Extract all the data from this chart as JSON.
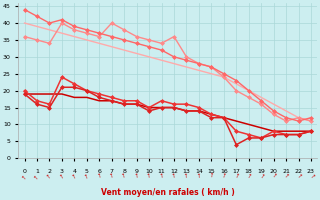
{
  "xlabel": "Vent moyen/en rafales ( km/h )",
  "xlim": [
    -0.5,
    23.5
  ],
  "ylim": [
    0,
    46
  ],
  "xticks": [
    0,
    1,
    2,
    3,
    4,
    5,
    6,
    7,
    8,
    9,
    10,
    11,
    12,
    13,
    14,
    15,
    16,
    17,
    18,
    19,
    20,
    21,
    22,
    23
  ],
  "yticks": [
    0,
    5,
    10,
    15,
    20,
    25,
    30,
    35,
    40,
    45
  ],
  "bg_color": "#cceef0",
  "grid_color": "#aad8d8",
  "lines": [
    {
      "x": [
        0,
        1,
        2,
        3,
        4,
        5,
        6,
        7,
        8,
        9,
        10,
        11,
        12,
        13,
        14,
        15,
        16,
        17,
        18,
        19,
        20,
        21,
        22,
        23
      ],
      "y": [
        40,
        39,
        38,
        37,
        36,
        35,
        34,
        33,
        32,
        31,
        30,
        29,
        28,
        27,
        26,
        25,
        24,
        22,
        20,
        18,
        16,
        14,
        12,
        11
      ],
      "color": "#ffaaaa",
      "lw": 1.0,
      "marker": null
    },
    {
      "x": [
        0,
        1,
        2,
        3,
        4,
        5,
        6,
        7,
        8,
        9,
        10,
        11,
        12,
        13,
        14,
        15,
        16,
        17,
        18,
        19,
        20,
        21,
        22,
        23
      ],
      "y": [
        36,
        35,
        34,
        40,
        38,
        37,
        36,
        40,
        38,
        36,
        35,
        34,
        36,
        30,
        28,
        27,
        24,
        20,
        18,
        16,
        13,
        11,
        12,
        11
      ],
      "color": "#ff8888",
      "lw": 1.0,
      "marker": "D",
      "markersize": 2
    },
    {
      "x": [
        0,
        1,
        2,
        3,
        4,
        5,
        6,
        7,
        8,
        9,
        10,
        11,
        12,
        13,
        14,
        15,
        16,
        17,
        18,
        19,
        20,
        21,
        22,
        23
      ],
      "y": [
        44,
        42,
        40,
        41,
        39,
        38,
        37,
        36,
        35,
        34,
        33,
        32,
        30,
        29,
        28,
        27,
        25,
        23,
        20,
        17,
        14,
        12,
        11,
        12
      ],
      "color": "#ff6666",
      "lw": 1.0,
      "marker": "D",
      "markersize": 2
    },
    {
      "x": [
        0,
        1,
        2,
        3,
        4,
        5,
        6,
        7,
        8,
        9,
        10,
        11,
        12,
        13,
        14,
        15,
        16,
        17,
        18,
        19,
        20,
        21,
        22,
        23
      ],
      "y": [
        19,
        19,
        19,
        19,
        18,
        18,
        17,
        17,
        16,
        16,
        15,
        15,
        15,
        14,
        14,
        13,
        12,
        11,
        10,
        9,
        8,
        8,
        8,
        8
      ],
      "color": "#cc0000",
      "lw": 1.1,
      "marker": null
    },
    {
      "x": [
        0,
        1,
        2,
        3,
        4,
        5,
        6,
        7,
        8,
        9,
        10,
        11,
        12,
        13,
        14,
        15,
        16,
        17,
        18,
        19,
        20,
        21,
        22,
        23
      ],
      "y": [
        20,
        17,
        16,
        24,
        22,
        20,
        19,
        18,
        17,
        17,
        15,
        17,
        16,
        16,
        15,
        13,
        12,
        8,
        7,
        6,
        8,
        7,
        7,
        8
      ],
      "color": "#ee3333",
      "lw": 1.1,
      "marker": "D",
      "markersize": 2
    },
    {
      "x": [
        0,
        1,
        2,
        3,
        4,
        5,
        6,
        7,
        8,
        9,
        10,
        11,
        12,
        13,
        14,
        15,
        16,
        17,
        18,
        19,
        20,
        21,
        22,
        23
      ],
      "y": [
        19,
        16,
        15,
        21,
        21,
        20,
        18,
        17,
        16,
        16,
        14,
        15,
        15,
        14,
        14,
        12,
        12,
        4,
        6,
        6,
        7,
        7,
        7,
        8
      ],
      "color": "#dd2222",
      "lw": 1.1,
      "marker": "D",
      "markersize": 2
    }
  ],
  "arrow_angles": [
    45,
    45,
    35,
    30,
    25,
    20,
    15,
    15,
    15,
    10,
    10,
    10,
    10,
    5,
    5,
    350,
    340,
    335,
    330,
    325,
    320,
    315,
    310,
    305
  ]
}
